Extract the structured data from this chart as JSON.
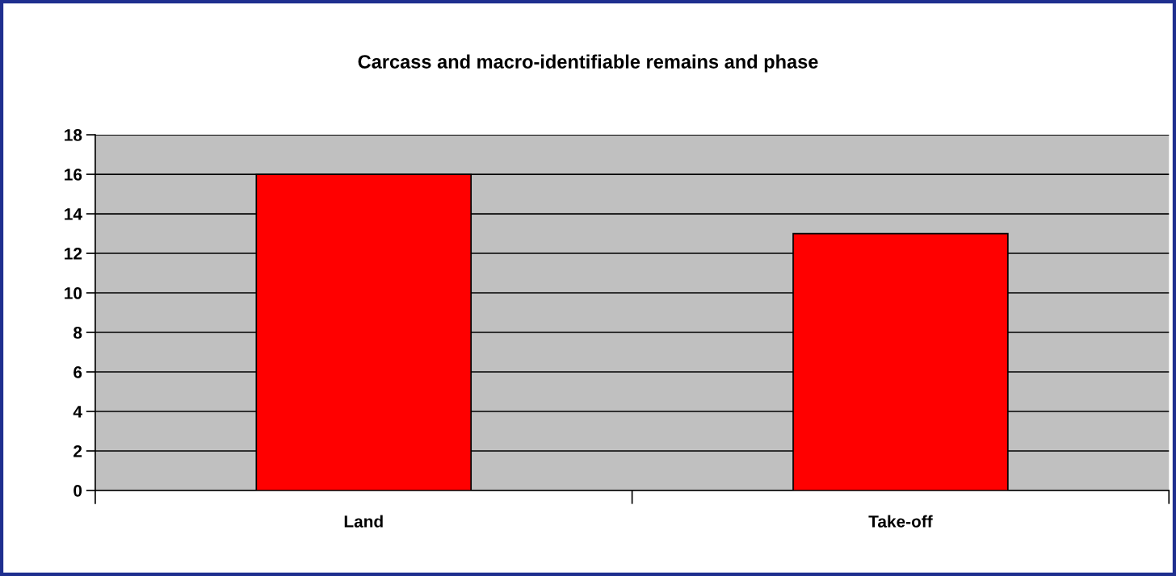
{
  "chart_data": {
    "type": "bar",
    "title": "Carcass and macro-identifiable remains and phase",
    "categories": [
      "Land",
      "Take-off"
    ],
    "values": [
      16,
      13
    ],
    "color": "#ff0000",
    "ylim": [
      0,
      18
    ],
    "yticks": [
      0,
      2,
      4,
      6,
      8,
      10,
      12,
      14,
      16,
      18
    ],
    "grid": "y"
  }
}
